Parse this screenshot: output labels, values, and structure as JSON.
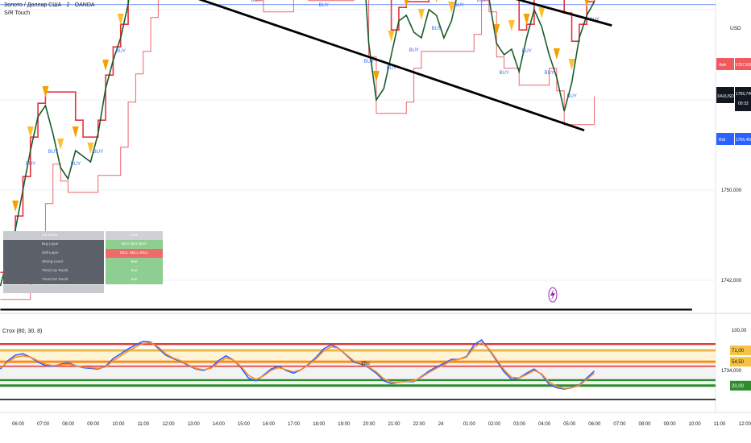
{
  "header": {
    "symbol_line": "Золото / Доллар США · 2 · OANDA",
    "indicator_line": "S/R Touch"
  },
  "indicator_pane": {
    "title": "Стох (80, 30, 8)",
    "lower_label": "3Вр"
  },
  "price_axis": {
    "currency": "USD",
    "ticks": [
      "1750,000",
      "1742,000",
      "1734,000"
    ],
    "ask_label": "Ask",
    "ask_price": "1767,630",
    "last_symbol": "XAUUSD",
    "last_price": "1766,740",
    "countdown": "00:33",
    "bid_label": "Bid",
    "bid_price": "1766,450"
  },
  "osc_axis": {
    "ticks": [
      "100,00",
      "71,00",
      "54,50",
      "20,00"
    ],
    "colors": {
      "upper": "#f5c242",
      "mid": "#f5c242",
      "lower": "#2e8b2e"
    }
  },
  "time_axis": {
    "labels": [
      "06:00",
      "07:00",
      "08:00",
      "09:00",
      "10:00",
      "11:00",
      "12:00",
      "13:00",
      "14:00",
      "15:00",
      "16:00",
      "17:00",
      "18:00",
      "19:00",
      "20:00",
      "21:00",
      "22:00",
      "24",
      "01:00",
      "02:00",
      "03:00",
      "04:00",
      "05:00",
      "06:00",
      "07:00",
      "08:00",
      "09:00",
      "10:00",
      "11:00",
      "12:00"
    ]
  },
  "stats_table": {
    "rows": [
      {
        "label": "Lot Sizes",
        "value": "0.01"
      },
      {
        "label": "Buy Layer",
        "value": "BUY  BUY  BUY"
      },
      {
        "label": "Sell Layer",
        "value": "SELL SELL SELL"
      },
      {
        "label": "Strong Level",
        "value": "true"
      },
      {
        "label": "Trend Up Touch",
        "value": "true"
      },
      {
        "label": "Trend Dn Touch",
        "value": "true"
      },
      {
        "label": "",
        "value": ""
      }
    ]
  },
  "colors": {
    "price": "#1a5c2e",
    "sr": "#e8323c",
    "trend": "#000000",
    "sell": "#f5a000",
    "buy_label": "#3a6ef0",
    "stoch_k": "#2962ff",
    "stoch_d": "#ff8c2a",
    "ask": "#f0595e",
    "bid": "#2962ff"
  },
  "chart_data": [
    {
      "type": "line",
      "title": "Золото / Доллар США · 2 · OANDA",
      "ylabel": "USD",
      "ylim": [
        1728,
        1774
      ],
      "x_hours": [
        5.5,
        5.8,
        6.1,
        6.4,
        6.7,
        7.0,
        7.3,
        7.6,
        7.9,
        8.2,
        8.5,
        8.8,
        9.1,
        9.4,
        9.7,
        10.0,
        10.3,
        10.6,
        10.9,
        11.2,
        11.5,
        11.8,
        12.1,
        12.4,
        12.7,
        13.0,
        13.3,
        13.6,
        13.9,
        14.2,
        14.5,
        14.8,
        15.1,
        15.4,
        15.7,
        16.0,
        16.3,
        16.6,
        16.9,
        17.2,
        17.5,
        17.8,
        18.1,
        18.4,
        18.7,
        19.0,
        19.3,
        19.6,
        19.9,
        20.2,
        20.5,
        20.8,
        21.1,
        21.4,
        21.7,
        22.0,
        22.3,
        22.6,
        22.9,
        23.2,
        23.5,
        23.8,
        24.1,
        24.4,
        24.7,
        25.0,
        25.3,
        25.6,
        25.9,
        26.2,
        26.5,
        26.8,
        27.1,
        27.4,
        27.7,
        28.0,
        28.3,
        28.6,
        28.9,
        29.2
      ],
      "series": [
        {
          "values": [
            1741.5,
            1744.0,
            1746.5,
            1750.0,
            1753.5,
            1756.5,
            1757.5,
            1755.0,
            1752.0,
            1751.0,
            1753.5,
            1753.0,
            1752.5,
            1755.0,
            1759.0,
            1761.5,
            1763.5,
            1766.5,
            1772.0,
            1774.0,
            1773.5,
            1772.5,
            1772.0,
            1773.5,
            1774.0,
            1773.0,
            1772.5,
            1770.5,
            1771.0,
            1773.5,
            1773.0,
            1771.5,
            1770.5,
            1771.0,
            1768.0,
            1767.0,
            1768.5,
            1771.0,
            1772.0,
            1771.5,
            1770.0,
            1768.0,
            1768.5,
            1768.0,
            1772.5,
            1773.5,
            1772.0,
            1771.0,
            1773.5,
            1763.0,
            1758.0,
            1759.0,
            1762.0,
            1765.0,
            1765.5,
            1764.0,
            1763.5,
            1766.0,
            1765.5,
            1763.5,
            1765.0,
            1768.0,
            1769.5,
            1768.5,
            1768.0,
            1767.0,
            1763.0,
            1762.0,
            1762.5,
            1760.5,
            1763.5,
            1766.0,
            1764.5,
            1762.0,
            1760.0,
            1757.0,
            1759.5,
            1763.5,
            1765.5,
            1766.7
          ]
        }
      ],
      "trendlines": [
        {
          "name": "upper",
          "points": [
            [
              14.6,
              1774.0
            ],
            [
              29.9,
              1764.6
            ]
          ]
        },
        {
          "name": "lower",
          "points": [
            [
              10.7,
              1769.0
            ],
            [
              28.8,
              1755.3
            ]
          ]
        },
        {
          "name": "horizontal",
          "points": [
            [
              5.5,
              1739.4
            ],
            [
              33.1,
              1739.4
            ]
          ]
        }
      ]
    },
    {
      "type": "line",
      "title": "Стох (80, 30, 8)",
      "ylim": [
        0,
        100
      ],
      "x_hours": [
        5.5,
        5.8,
        6.1,
        6.4,
        6.7,
        7.0,
        7.3,
        7.6,
        7.9,
        8.2,
        8.5,
        8.8,
        9.1,
        9.4,
        9.7,
        10.0,
        10.3,
        10.6,
        10.9,
        11.2,
        11.5,
        11.8,
        12.1,
        12.4,
        12.7,
        13.0,
        13.3,
        13.6,
        13.9,
        14.2,
        14.5,
        14.8,
        15.1,
        15.4,
        15.7,
        16.0,
        16.3,
        16.6,
        16.9,
        17.2,
        17.5,
        17.8,
        18.1,
        18.4,
        18.7,
        19.0,
        19.3,
        19.6,
        19.9,
        20.2,
        20.5,
        20.8,
        21.1,
        21.4,
        21.7,
        22.0,
        22.3,
        22.6,
        22.9,
        23.2,
        23.5,
        23.8,
        24.1,
        24.4,
        24.7,
        25.0,
        25.3,
        25.6,
        25.9,
        26.2,
        26.5,
        26.8,
        27.1,
        27.4,
        27.7,
        28.0,
        28.3,
        28.6,
        28.9,
        29.2
      ],
      "series": [
        {
          "name": "%K",
          "values": [
            44,
            56,
            64,
            66,
            61,
            54,
            49,
            48,
            51,
            53,
            49,
            46,
            45,
            44,
            48,
            59,
            66,
            73,
            79,
            84,
            83,
            74,
            64,
            59,
            55,
            49,
            44,
            42,
            46,
            56,
            63,
            57,
            46,
            31,
            27,
            35,
            44,
            48,
            42,
            38,
            43,
            51,
            61,
            73,
            79,
            74,
            64,
            54,
            51,
            46,
            38,
            27,
            23,
            25,
            26,
            26,
            33,
            41,
            47,
            52,
            58,
            58,
            62,
            79,
            86,
            72,
            56,
            40,
            29,
            31,
            38,
            44,
            36,
            22,
            17,
            15,
            17,
            21,
            31,
            41
          ]
        },
        {
          "name": "%D",
          "values": [
            46,
            54,
            61,
            63,
            61,
            56,
            51,
            49,
            50,
            51,
            49,
            47,
            46,
            45,
            47,
            56,
            63,
            70,
            76,
            81,
            82,
            76,
            66,
            60,
            56,
            50,
            45,
            43,
            45,
            53,
            60,
            57,
            48,
            35,
            29,
            34,
            42,
            46,
            43,
            40,
            43,
            50,
            59,
            70,
            76,
            74,
            65,
            56,
            52,
            47,
            40,
            30,
            25,
            25,
            26,
            27,
            32,
            39,
            45,
            50,
            56,
            58,
            61,
            75,
            82,
            73,
            58,
            43,
            32,
            31,
            36,
            42,
            37,
            25,
            19,
            16,
            17,
            20,
            29,
            38
          ]
        }
      ],
      "levels": [
        {
          "name": "upper",
          "value": 71
        },
        {
          "name": "middle",
          "value": 54.5
        },
        {
          "name": "lower",
          "value": 20
        }
      ]
    }
  ]
}
